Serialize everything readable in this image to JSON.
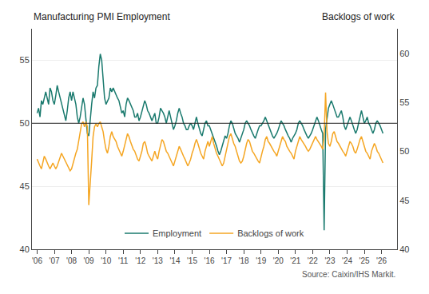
{
  "chart_data": {
    "type": "line",
    "ylabel": "Manufacturing PMI Employment",
    "y2label": "Backlogs of work",
    "annotations": [
      "Source: Caixin/IHS Markit."
    ],
    "x": [
      2006,
      2006.0833,
      2006.1667,
      2006.25,
      2006.3333,
      2006.4167,
      2006.5,
      2006.5833,
      2006.6667,
      2006.75,
      2006.8333,
      2006.9167,
      2007,
      2007.0833,
      2007.1667,
      2007.25,
      2007.3333,
      2007.4167,
      2007.5,
      2007.5833,
      2007.6667,
      2007.75,
      2007.8333,
      2007.9167,
      2008,
      2008.0833,
      2008.1667,
      2008.25,
      2008.3333,
      2008.4167,
      2008.5,
      2008.5833,
      2008.6667,
      2008.75,
      2008.8333,
      2008.9167,
      2009,
      2009.0833,
      2009.1667,
      2009.25,
      2009.3333,
      2009.4167,
      2009.5,
      2009.5833,
      2009.6667,
      2009.75,
      2009.8333,
      2009.9167,
      2010,
      2010.0833,
      2010.1667,
      2010.25,
      2010.3333,
      2010.4167,
      2010.5,
      2010.5833,
      2010.6667,
      2010.75,
      2010.8333,
      2010.9167,
      2011,
      2011.0833,
      2011.1667,
      2011.25,
      2011.3333,
      2011.4167,
      2011.5,
      2011.5833,
      2011.6667,
      2011.75,
      2011.8333,
      2011.9167,
      2012,
      2012.0833,
      2012.1667,
      2012.25,
      2012.3333,
      2012.4167,
      2012.5,
      2012.5833,
      2012.6667,
      2012.75,
      2012.8333,
      2012.9167,
      2013,
      2013.0833,
      2013.1667,
      2013.25,
      2013.3333,
      2013.4167,
      2013.5,
      2013.5833,
      2013.6667,
      2013.75,
      2013.8333,
      2013.9167,
      2014,
      2014.0833,
      2014.1667,
      2014.25,
      2014.3333,
      2014.4167,
      2014.5,
      2014.5833,
      2014.6667,
      2014.75,
      2014.8333,
      2014.9167,
      2015,
      2015.0833,
      2015.1667,
      2015.25,
      2015.3333,
      2015.4167,
      2015.5,
      2015.5833,
      2015.6667,
      2015.75,
      2015.8333,
      2015.9167,
      2016,
      2016.0833,
      2016.1667,
      2016.25,
      2016.3333,
      2016.4167,
      2016.5,
      2016.5833,
      2016.6667,
      2016.75,
      2016.8333,
      2016.9167,
      2017,
      2017.0833,
      2017.1667,
      2017.25,
      2017.3333,
      2017.4167,
      2017.5,
      2017.5833,
      2017.6667,
      2017.75,
      2017.8333,
      2017.9167,
      2018,
      2018.0833,
      2018.1667,
      2018.25,
      2018.3333,
      2018.4167,
      2018.5,
      2018.5833,
      2018.6667,
      2018.75,
      2018.8333,
      2018.9167,
      2019,
      2019.0833,
      2019.1667,
      2019.25,
      2019.3333,
      2019.4167,
      2019.5,
      2019.5833,
      2019.6667,
      2019.75,
      2019.8333,
      2019.9167,
      2020,
      2020.0833,
      2020.1667,
      2020.25,
      2020.3333,
      2020.4167,
      2020.5,
      2020.5833,
      2020.6667,
      2020.75,
      2020.8333,
      2020.9167,
      2021,
      2021.0833,
      2021.1667,
      2021.25,
      2021.3333,
      2021.4167,
      2021.5,
      2021.5833,
      2021.6667,
      2021.75,
      2021.8333,
      2021.9167,
      2022,
      2022.0833,
      2022.1667,
      2022.25,
      2022.3333,
      2022.4167,
      2022.5,
      2022.5833,
      2022.6667,
      2022.75,
      2022.8333,
      2022.9167,
      2023,
      2023.0833,
      2023.1667,
      2023.25,
      2023.3333,
      2023.4167,
      2023.5,
      2023.5833,
      2023.6667,
      2023.75,
      2023.8333,
      2023.9167,
      2024,
      2024.0833,
      2024.1667,
      2024.25,
      2024.3333,
      2024.4167,
      2024.5,
      2024.5833,
      2024.6667,
      2024.75,
      2024.8333,
      2024.9167,
      2025,
      2025.0833,
      2025.1667,
      2025.25,
      2025.3333,
      2025.4167,
      2025.5,
      2025.5833,
      2025.6667,
      2025.75,
      2025.8333,
      2025.9167,
      2026,
      2026.0833
    ],
    "series": [
      {
        "name": "Employment",
        "color": "#1a7a6e",
        "values": [
          50.8,
          51.2,
          50.5,
          51.8,
          51.5,
          52.0,
          52.5,
          52.0,
          51.5,
          52.8,
          52.5,
          51.8,
          51.5,
          52.2,
          53.0,
          52.5,
          52.0,
          51.5,
          51.0,
          50.5,
          50.2,
          51.0,
          52.0,
          52.5,
          51.8,
          52.5,
          52.0,
          51.5,
          50.5,
          50.0,
          50.5,
          51.2,
          52.0,
          51.5,
          50.2,
          49.2,
          49.0,
          50.5,
          51.5,
          52.5,
          52.0,
          52.8,
          53.0,
          54.5,
          55.5,
          55.0,
          53.5,
          52.0,
          51.5,
          51.8,
          52.0,
          52.8,
          52.5,
          52.8,
          52.5,
          52.2,
          52.0,
          51.8,
          51.2,
          50.8,
          51.0,
          50.5,
          51.5,
          52.0,
          51.8,
          51.5,
          51.2,
          51.0,
          50.5,
          50.5,
          50.8,
          50.2,
          50.5,
          51.0,
          51.5,
          51.8,
          51.5,
          51.0,
          50.8,
          50.5,
          50.2,
          50.5,
          50.8,
          50.0,
          50.0,
          50.5,
          51.2,
          51.0,
          50.8,
          50.5,
          50.0,
          50.5,
          51.0,
          50.5,
          50.0,
          49.5,
          49.8,
          50.2,
          50.8,
          51.2,
          50.8,
          50.5,
          50.0,
          49.8,
          49.5,
          49.5,
          49.8,
          50.0,
          49.8,
          49.5,
          50.0,
          50.5,
          50.0,
          49.5,
          49.2,
          49.0,
          49.5,
          50.0,
          50.2,
          49.8,
          49.8,
          49.5,
          49.2,
          48.8,
          48.5,
          48.2,
          47.8,
          47.5,
          47.8,
          48.2,
          48.5,
          49.0,
          48.8,
          49.2,
          49.8,
          50.2,
          50.0,
          49.5,
          49.2,
          49.0,
          48.8,
          48.5,
          48.8,
          49.2,
          49.5,
          50.0,
          50.2,
          50.0,
          49.8,
          49.5,
          49.2,
          49.0,
          48.8,
          49.2,
          49.5,
          49.8,
          49.8,
          50.0,
          50.2,
          50.5,
          50.2,
          49.8,
          49.5,
          49.2,
          49.0,
          48.8,
          49.0,
          49.2,
          49.5,
          49.8,
          50.2,
          50.0,
          49.8,
          49.5,
          49.2,
          49.0,
          48.8,
          48.5,
          48.8,
          49.0,
          49.2,
          49.5,
          50.0,
          50.2,
          50.0,
          49.8,
          49.5,
          49.2,
          49.0,
          48.8,
          49.0,
          49.2,
          49.5,
          49.8,
          50.2,
          50.5,
          50.2,
          49.8,
          49.5,
          49.2,
          41.5,
          49.5,
          50.5,
          51.2,
          51.5,
          51.8,
          51.5,
          51.2,
          50.8,
          50.5,
          50.5,
          50.8,
          51.0,
          50.5,
          49.8,
          49.5,
          49.8,
          50.2,
          50.5,
          50.2,
          49.8,
          49.5,
          49.2,
          49.5,
          50.0,
          50.5,
          51.0,
          50.5,
          50.0,
          50.2,
          50.5,
          50.0,
          49.8,
          49.5,
          49.2,
          49.5,
          50.0,
          50.2,
          50.0,
          49.8,
          49.5,
          49.2
        ]
      },
      {
        "name": "Backlogs of work",
        "color": "#f5a623",
        "axis": "y2",
        "values": [
          49.2,
          48.8,
          48.5,
          48.2,
          48.8,
          49.5,
          49.2,
          48.8,
          48.5,
          48.2,
          48.5,
          48.8,
          48.5,
          48.2,
          48.5,
          49.0,
          49.5,
          49.8,
          49.5,
          49.2,
          48.8,
          48.5,
          48.2,
          48.0,
          48.2,
          48.8,
          49.2,
          49.8,
          50.2,
          51.0,
          51.8,
          52.8,
          53.0,
          52.5,
          53.0,
          52.5,
          44.5,
          46.5,
          49.0,
          51.5,
          52.5,
          52.8,
          52.5,
          52.8,
          53.0,
          52.5,
          52.0,
          51.0,
          50.2,
          49.8,
          50.5,
          51.5,
          52.0,
          51.5,
          51.2,
          51.0,
          50.5,
          50.2,
          49.8,
          49.5,
          50.0,
          50.5,
          51.2,
          51.8,
          51.5,
          51.0,
          50.5,
          50.2,
          50.0,
          49.5,
          49.2,
          49.0,
          49.5,
          50.0,
          50.8,
          51.0,
          50.5,
          49.8,
          49.5,
          49.2,
          49.0,
          49.5,
          50.0,
          49.5,
          49.2,
          50.0,
          50.5,
          51.2,
          51.0,
          50.5,
          50.0,
          49.8,
          49.5,
          49.2,
          48.8,
          48.5,
          49.0,
          49.5,
          50.0,
          50.5,
          50.2,
          49.8,
          49.5,
          49.2,
          48.8,
          48.5,
          48.8,
          49.2,
          49.8,
          50.2,
          50.8,
          51.2,
          50.8,
          50.2,
          49.8,
          49.5,
          49.2,
          50.0,
          50.5,
          51.0,
          50.5,
          51.0,
          51.5,
          50.8,
          50.2,
          49.8,
          49.5,
          49.2,
          48.8,
          48.5,
          48.8,
          49.5,
          50.0,
          50.8,
          51.5,
          51.8,
          51.2,
          50.8,
          50.5,
          50.0,
          49.5,
          49.0,
          48.8,
          49.0,
          49.5,
          50.2,
          50.8,
          51.2,
          51.0,
          50.5,
          50.0,
          49.8,
          49.5,
          49.2,
          49.0,
          48.8,
          49.5,
          50.0,
          50.5,
          51.2,
          51.5,
          51.0,
          50.8,
          50.5,
          50.2,
          50.0,
          49.8,
          49.5,
          50.0,
          50.5,
          51.0,
          51.5,
          51.2,
          51.0,
          50.5,
          50.2,
          50.0,
          49.8,
          49.5,
          49.2,
          50.0,
          50.5,
          51.0,
          51.5,
          51.2,
          51.0,
          50.8,
          50.5,
          50.2,
          50.0,
          50.2,
          50.5,
          50.8,
          51.2,
          51.5,
          51.2,
          51.0,
          50.8,
          50.5,
          50.2,
          51.5,
          56.0,
          52.0,
          50.8,
          50.5,
          51.0,
          51.8,
          52.0,
          51.5,
          51.0,
          50.8,
          50.5,
          50.2,
          50.0,
          49.8,
          49.5,
          50.0,
          50.5,
          51.0,
          50.8,
          50.5,
          50.0,
          49.8,
          50.2,
          50.8,
          51.2,
          51.5,
          51.0,
          50.5,
          50.0,
          49.8,
          49.5,
          49.2,
          50.0,
          50.5,
          50.8,
          50.5,
          50.0,
          49.8,
          49.5,
          49.2,
          48.8
        ]
      }
    ],
    "xlim": [
      2005.7,
      2026.9
    ],
    "xticks": [
      {
        "value": 2006,
        "label": "'06"
      },
      {
        "value": 2007,
        "label": "'07"
      },
      {
        "value": 2008,
        "label": "'08"
      },
      {
        "value": 2009,
        "label": "'09"
      },
      {
        "value": 2010,
        "label": "'10"
      },
      {
        "value": 2011,
        "label": "'11"
      },
      {
        "value": 2012,
        "label": "'12"
      },
      {
        "value": 2013,
        "label": "'13"
      },
      {
        "value": 2014,
        "label": "'14"
      },
      {
        "value": 2015,
        "label": "'15"
      },
      {
        "value": 2016,
        "label": "'16"
      },
      {
        "value": 2017,
        "label": "'17"
      },
      {
        "value": 2018,
        "label": "'18"
      },
      {
        "value": 2019,
        "label": "'19"
      },
      {
        "value": 2020,
        "label": "'20"
      },
      {
        "value": 2021,
        "label": "'21"
      },
      {
        "value": 2022,
        "label": "'22"
      },
      {
        "value": 2023,
        "label": "'23"
      },
      {
        "value": 2024,
        "label": "'24"
      },
      {
        "value": 2025,
        "label": "'25"
      },
      {
        "value": 2026,
        "label": "'26"
      }
    ],
    "ylim": [
      40,
      57.5
    ],
    "yticks": [
      40,
      45,
      50,
      55
    ],
    "y2lim": [
      40,
      62.5
    ],
    "y2ticks": [
      40,
      45,
      50,
      55,
      60
    ],
    "hline": {
      "value": 50,
      "color": "#222222"
    },
    "grid": "y",
    "legend": "lower center"
  }
}
